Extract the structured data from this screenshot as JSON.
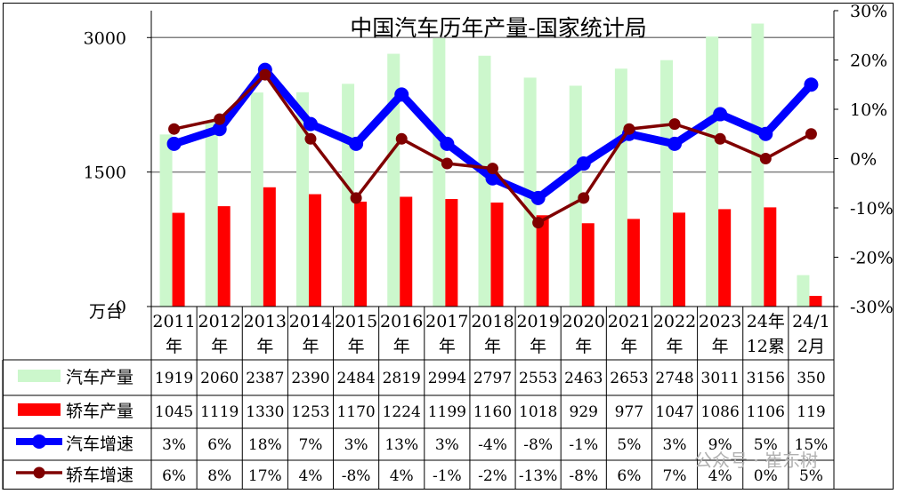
{
  "chart_data": {
    "type": "bar+line",
    "title": "中国汽车历年产量-国家统计局",
    "left_axis": {
      "ticks": [
        "3000",
        "1500",
        "0"
      ],
      "unit": "万台",
      "min": 0,
      "max": 3300
    },
    "right_axis": {
      "ticks": [
        "30%",
        "20%",
        "10%",
        "0%",
        "-10%",
        "-20%",
        "-30%"
      ],
      "min": -30,
      "max": 30
    },
    "categories": [
      [
        "2011",
        "年"
      ],
      [
        "2012",
        "年"
      ],
      [
        "2013",
        "年"
      ],
      [
        "2014",
        "年"
      ],
      [
        "2015",
        "年"
      ],
      [
        "2016",
        "年"
      ],
      [
        "2017",
        "年"
      ],
      [
        "2018",
        "年"
      ],
      [
        "2019",
        "年"
      ],
      [
        "2020",
        "年"
      ],
      [
        "2021",
        "年"
      ],
      [
        "2022",
        "年"
      ],
      [
        "2023",
        "年"
      ],
      [
        "24年",
        "12累"
      ],
      [
        "24/1",
        "2月"
      ]
    ],
    "series": [
      {
        "name": "汽车产量",
        "type": "bar",
        "axis": "left",
        "color": "#ccf7cc",
        "values": [
          1919,
          2060,
          2387,
          2390,
          2484,
          2819,
          2994,
          2797,
          2553,
          2463,
          2653,
          2748,
          3011,
          3156,
          350
        ],
        "labels": [
          "1919",
          "2060",
          "2387",
          "2390",
          "2484",
          "2819",
          "2994",
          "2797",
          "2553",
          "2463",
          "2653",
          "2748",
          "3011",
          "3156",
          "350"
        ]
      },
      {
        "name": "轿车产量",
        "type": "bar",
        "axis": "left",
        "color": "#ff0000",
        "values": [
          1045,
          1119,
          1330,
          1253,
          1170,
          1224,
          1199,
          1160,
          1018,
          929,
          977,
          1047,
          1086,
          1106,
          119
        ],
        "labels": [
          "1045",
          "1119",
          "1330",
          "1253",
          "1170",
          "1224",
          "1199",
          "1160",
          "1018",
          "929",
          "977",
          "1047",
          "1086",
          "1106",
          "119"
        ]
      },
      {
        "name": "汽车增速",
        "type": "line",
        "axis": "right",
        "color": "#0000ff",
        "values": [
          3,
          6,
          18,
          7,
          3,
          13,
          3,
          -4,
          -8,
          -1,
          5,
          3,
          9,
          5,
          15
        ],
        "labels": [
          "3%",
          "6%",
          "18%",
          "7%",
          "3%",
          "13%",
          "3%",
          "-4%",
          "-8%",
          "-1%",
          "5%",
          "3%",
          "9%",
          "5%",
          "15%"
        ]
      },
      {
        "name": "轿车增速",
        "type": "line",
        "axis": "right",
        "color": "#800000",
        "values": [
          6,
          8,
          17,
          4,
          -8,
          4,
          -1,
          -2,
          -13,
          -8,
          6,
          7,
          4,
          0,
          5
        ],
        "labels": [
          "6%",
          "8%",
          "17%",
          "4%",
          "-8%",
          "4%",
          "-1%",
          "-2%",
          "-13%",
          "-8%",
          "6%",
          "7%",
          "4%",
          "0%",
          "5%"
        ]
      }
    ],
    "grid": true,
    "legend": "table-left"
  },
  "watermark": "公众号 · 崔东树"
}
